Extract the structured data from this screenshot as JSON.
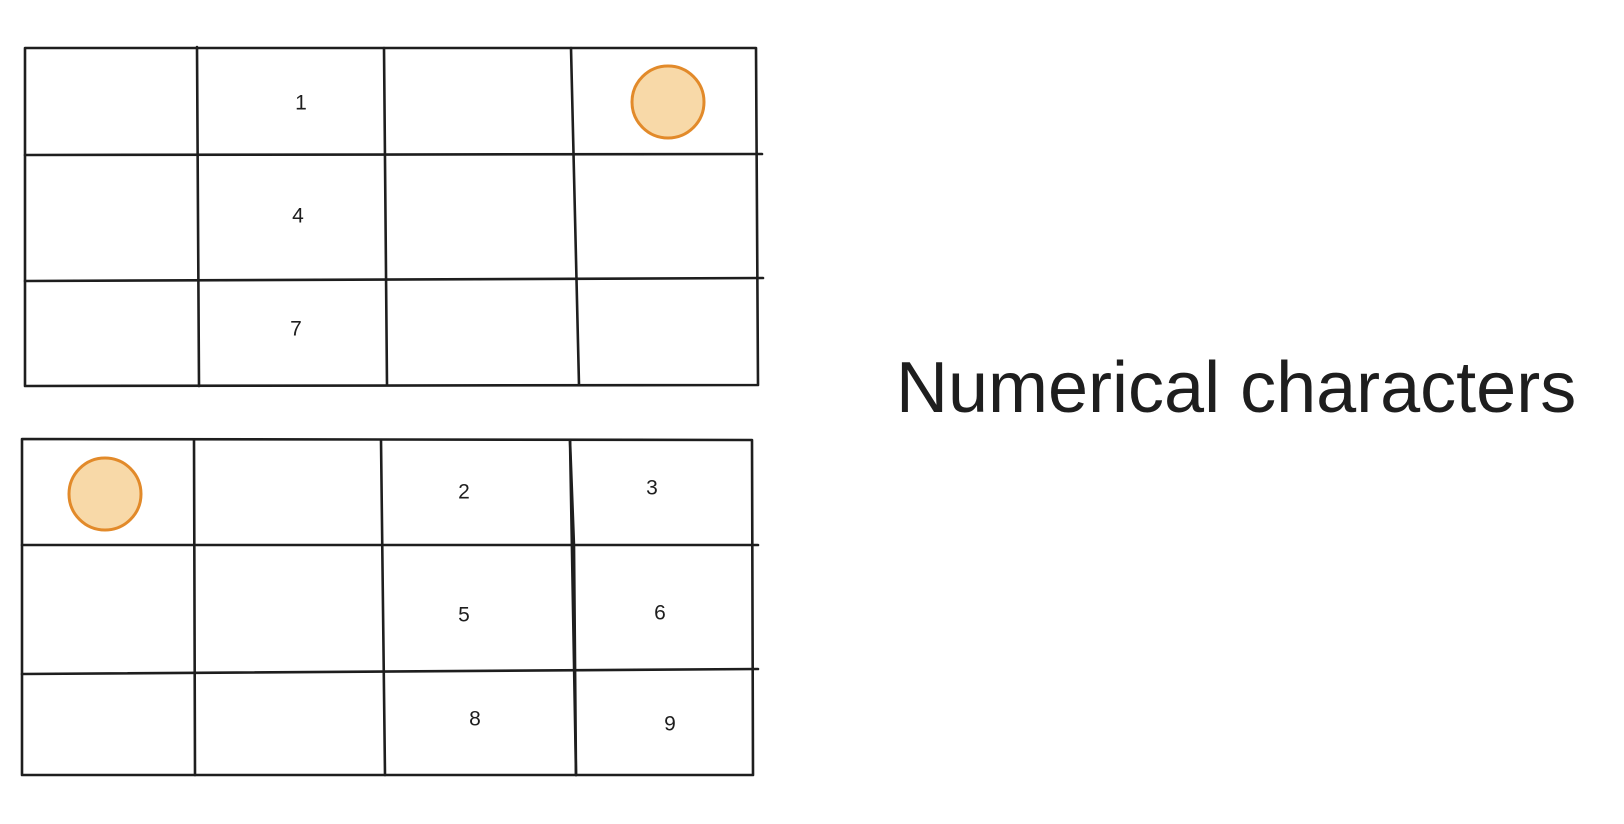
{
  "heading": "Numerical characters",
  "colors": {
    "stroke": "#1e1e1e",
    "marker_fill": "#f8d9a8",
    "marker_stroke": "#e28a2a"
  },
  "grids": [
    {
      "name": "top-grid",
      "cells": [
        [
          "",
          "1",
          "",
          "●"
        ],
        [
          "",
          "4",
          "",
          ""
        ],
        [
          "",
          "7",
          "",
          ""
        ]
      ]
    },
    {
      "name": "bottom-grid",
      "cells": [
        [
          "●",
          "",
          "2",
          "3"
        ],
        [
          "",
          "",
          "5",
          "6"
        ],
        [
          "",
          "",
          "8",
          "9"
        ]
      ]
    }
  ],
  "labels": {
    "n1": "1",
    "n2": "2",
    "n3": "3",
    "n4": "4",
    "n5": "5",
    "n6": "6",
    "n7": "7",
    "n8": "8",
    "n9": "9"
  }
}
